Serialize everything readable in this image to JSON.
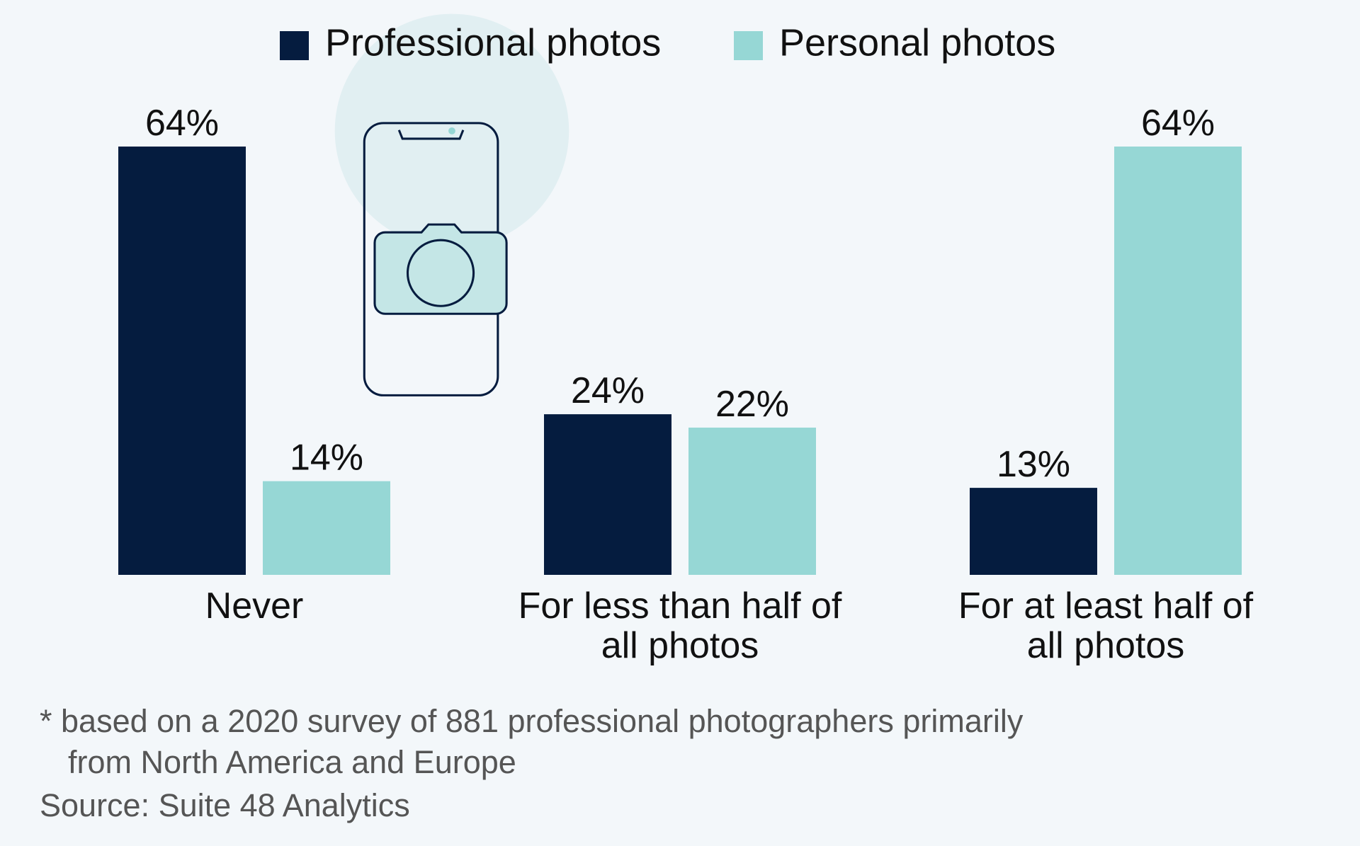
{
  "chart_data": {
    "type": "bar",
    "categories": [
      "Never",
      "For less than half of all photos",
      "For at least half of all photos"
    ],
    "series": [
      {
        "name": "Professional photos",
        "color": "#051c3f",
        "values": [
          64,
          24,
          13
        ],
        "value_labels": [
          "64%",
          "24%",
          "13%"
        ]
      },
      {
        "name": "Personal photos",
        "color": "#96d7d5",
        "values": [
          14,
          22,
          64
        ],
        "value_labels": [
          "14%",
          "22%",
          "64%"
        ]
      }
    ],
    "ylim": [
      0,
      64
    ],
    "footnote": "* based on a 2020 survey of 881 professional photographers primarily from North America and Europe",
    "source": "Source: Suite 48 Analytics"
  }
}
